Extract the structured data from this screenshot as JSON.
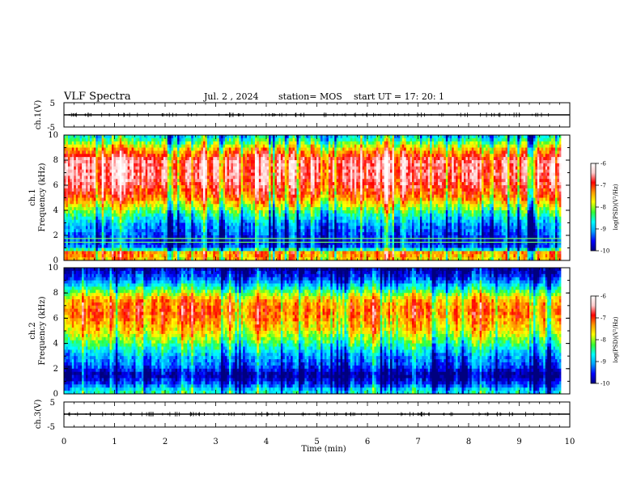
{
  "header": {
    "title": "VLF Spectra",
    "date": "Jul. 2 , 2024",
    "station": "station= MOS",
    "start": "start UT = 17: 20: 1"
  },
  "chart_data": [
    {
      "type": "line",
      "name": "ch1-waveform",
      "ylabel": "ch.1(V)",
      "ylim": [
        -5,
        5
      ],
      "yticks": [
        "5",
        "-5"
      ],
      "xlim": [
        0,
        10
      ],
      "level": 0
    },
    {
      "type": "heatmap",
      "name": "ch1-spectrogram",
      "ylabel": "Frequency (kHz)",
      "channel_label": "ch.1",
      "xlim": [
        0,
        10
      ],
      "ylim": [
        0,
        10
      ],
      "yticks": [
        "0",
        "2",
        "4",
        "6",
        "8",
        "10"
      ],
      "data_end_min": 9.83,
      "colorbar": {
        "label": "log(PSD)(V²/Hz)",
        "range": [
          -10,
          -6
        ],
        "ticks": [
          "-6",
          "-7",
          "-8",
          "-9",
          "-10"
        ]
      },
      "profile": [
        {
          "f": 0.2,
          "v": -7.5
        },
        {
          "f": 0.6,
          "v": -7.2
        },
        {
          "f": 1.0,
          "v": -9.2
        },
        {
          "f": 1.5,
          "v": -9.5
        },
        {
          "f": 2.2,
          "v": -9.3
        },
        {
          "f": 3.0,
          "v": -9.0
        },
        {
          "f": 4.0,
          "v": -8.2
        },
        {
          "f": 5.0,
          "v": -7.2
        },
        {
          "f": 6.5,
          "v": -6.6
        },
        {
          "f": 8.0,
          "v": -6.6
        },
        {
          "f": 8.9,
          "v": -7.5
        },
        {
          "f": 9.5,
          "v": -8.3
        },
        {
          "f": 10.0,
          "v": -8.8
        }
      ],
      "lines_khz": [
        1.45,
        1.75
      ]
    },
    {
      "type": "heatmap",
      "name": "ch2-spectrogram",
      "ylabel": "Frequency (kHz)",
      "channel_label": "ch.2",
      "xlim": [
        0,
        10
      ],
      "ylim": [
        0,
        10
      ],
      "yticks": [
        "0",
        "2",
        "4",
        "6",
        "8",
        "10"
      ],
      "data_end_min": 9.83,
      "colorbar": {
        "label": "log(PSD)(V²/Hz)",
        "range": [
          -10,
          -6
        ],
        "ticks": [
          "-6",
          "-7",
          "-8",
          "-9",
          "-10"
        ]
      },
      "profile": [
        {
          "f": 0.2,
          "v": -8.6
        },
        {
          "f": 0.8,
          "v": -9.4
        },
        {
          "f": 1.5,
          "v": -9.9
        },
        {
          "f": 2.2,
          "v": -9.3
        },
        {
          "f": 3.0,
          "v": -9.0
        },
        {
          "f": 4.0,
          "v": -8.3
        },
        {
          "f": 5.0,
          "v": -7.6
        },
        {
          "f": 6.5,
          "v": -7.1
        },
        {
          "f": 7.5,
          "v": -7.4
        },
        {
          "f": 8.3,
          "v": -8.4
        },
        {
          "f": 9.0,
          "v": -9.2
        },
        {
          "f": 10.0,
          "v": -9.9
        }
      ],
      "lines_khz": []
    },
    {
      "type": "line",
      "name": "ch3-waveform",
      "ylabel": "ch.3(V)",
      "ylim": [
        -5,
        5
      ],
      "yticks": [
        "5",
        "-5"
      ],
      "xlim": [
        0,
        10
      ],
      "level": 0
    }
  ],
  "xaxis": {
    "label": "Time (min)",
    "range": [
      0,
      10
    ],
    "ticks": [
      "0",
      "1",
      "2",
      "3",
      "4",
      "5",
      "6",
      "7",
      "8",
      "9",
      "10"
    ]
  },
  "colors": {
    "colormap": [
      "#00007f",
      "#0000ff",
      "#00a0ff",
      "#00ffff",
      "#33ff33",
      "#ffff00",
      "#ff9900",
      "#ff0000",
      "#ffcccc",
      "#ffffff"
    ]
  }
}
